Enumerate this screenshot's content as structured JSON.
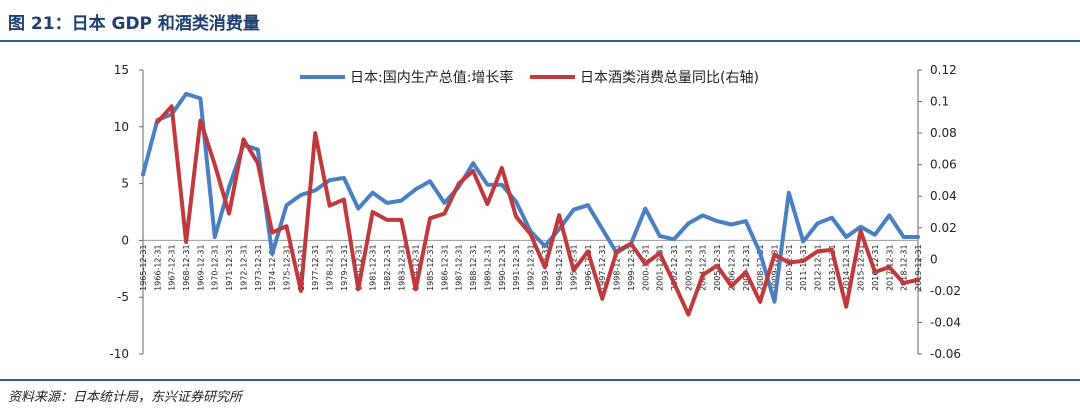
{
  "header": {
    "title": "图 21：日本 GDP 和酒类消费量"
  },
  "footer": {
    "source": "资料来源：日本统计局，东兴证券研究所"
  },
  "colors": {
    "gdp": "#4a7fc1",
    "alcohol": "#c0393d",
    "title": "#1f3f6f",
    "rule": "#2e5a8c"
  },
  "chart_data": {
    "type": "line",
    "title": "",
    "legend_placement": "top-center",
    "grid": false,
    "x": [
      "1965-12-31",
      "1966-12-31",
      "1967-12-31",
      "1968-12-31",
      "1969-12-31",
      "1970-12-31",
      "1971-12-31",
      "1972-12-31",
      "1973-12-31",
      "1974-12-31",
      "1975-12-31",
      "1976-12-31",
      "1977-12-31",
      "1978-12-31",
      "1979-12-31",
      "1980-12-31",
      "1981-12-31",
      "1982-12-31",
      "1983-12-31",
      "1984-12-31",
      "1985-12-31",
      "1986-12-31",
      "1987-12-31",
      "1988-12-31",
      "1989-12-31",
      "1990-12-31",
      "1991-12-31",
      "1992-12-31",
      "1993-12-31",
      "1994-12-31",
      "1995-12-31",
      "1996-12-31",
      "1997-12-31",
      "1998-12-31",
      "1999-12-31",
      "2000-12-31",
      "2001-12-31",
      "2002-12-31",
      "2003-12-31",
      "2004-12-31",
      "2005-12-31",
      "2006-12-31",
      "2007-12-31",
      "2008-12-31",
      "2009-12-31",
      "2010-12-31",
      "2011-12-31",
      "2012-12-31",
      "2013-12-31",
      "2014-12-31",
      "2015-12-31",
      "2016-12-31",
      "2017-12-31",
      "2018-12-31",
      "2019-12-31"
    ],
    "y_left": {
      "min": -10,
      "max": 15,
      "ticks": [
        15,
        10,
        5,
        0,
        -5,
        -10
      ]
    },
    "y_right": {
      "min": -0.06,
      "max": 0.12,
      "ticks": [
        "0.12",
        "0.1",
        "0.08",
        "0.06",
        "0.04",
        "0.02",
        "0",
        "-0.02",
        "-0.04",
        "-0.06"
      ]
    },
    "series": [
      {
        "name": "日本:国内生产总值:增长率",
        "axis": "left",
        "values": [
          5.8,
          10.6,
          11.1,
          12.9,
          12.5,
          0.3,
          4.7,
          8.4,
          8.0,
          -1.2,
          3.1,
          4.0,
          4.4,
          5.3,
          5.5,
          2.8,
          4.2,
          3.3,
          3.5,
          4.5,
          5.2,
          3.3,
          4.7,
          6.8,
          4.9,
          4.9,
          3.4,
          0.8,
          -0.5,
          1.0,
          2.7,
          3.1,
          1.0,
          -1.1,
          -0.3,
          2.8,
          0.4,
          0.1,
          1.5,
          2.2,
          1.7,
          1.4,
          1.7,
          -1.1,
          -5.4,
          4.2,
          -0.1,
          1.5,
          2.0,
          0.3,
          1.2,
          0.5,
          2.2,
          0.3,
          0.3
        ]
      },
      {
        "name": "日本酒类消费总量同比(右轴)",
        "axis": "right",
        "values": [
          null,
          0.087,
          0.097,
          0.011,
          0.088,
          0.06,
          0.029,
          0.076,
          0.061,
          0.017,
          0.021,
          -0.02,
          0.08,
          0.034,
          0.038,
          -0.019,
          0.03,
          0.025,
          0.025,
          -0.019,
          0.026,
          0.029,
          0.048,
          0.056,
          0.035,
          0.058,
          0.027,
          0.016,
          -0.005,
          0.028,
          -0.007,
          0.005,
          -0.025,
          0.005,
          0.01,
          -0.003,
          0.004,
          -0.015,
          -0.035,
          -0.01,
          -0.004,
          -0.017,
          -0.008,
          -0.027,
          0.003,
          -0.002,
          -0.001,
          0.005,
          0.006,
          -0.03,
          0.018,
          -0.008,
          -0.005,
          -0.015,
          -0.013
        ]
      }
    ]
  }
}
